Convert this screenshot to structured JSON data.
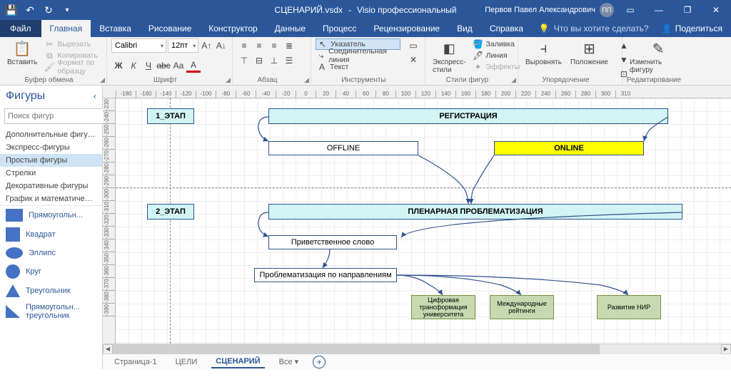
{
  "titlebar": {
    "filename": "СЦЕНАРИЙ.vsdx",
    "app": "Visio профессиональный",
    "user": "Первов Павел Александрович",
    "user_initials": "ПП"
  },
  "tabs": {
    "file": "Файл",
    "home": "Главная",
    "insert": "Вставка",
    "draw": "Рисование",
    "design": "Конструктор",
    "data": "Данные",
    "process": "Процесс",
    "review": "Рецензирование",
    "view": "Вид",
    "help": "Справка",
    "tellme": "Что вы хотите сделать?",
    "share": "Поделиться"
  },
  "ribbon": {
    "clipboard": {
      "label": "Буфер обмена",
      "paste": "Вставить",
      "cut": "Вырезать",
      "copy": "Копировать",
      "format": "Формат по образцу"
    },
    "font": {
      "label": "Шрифт",
      "name": "Calibri",
      "size": "12пт"
    },
    "paragraph": {
      "label": "Абзац"
    },
    "tools": {
      "label": "Инструменты",
      "pointer": "Указатель",
      "connector": "Соединительная линия",
      "text": "Текст"
    },
    "styles": {
      "label": "Стили фигур",
      "express": "Экспресс-стили",
      "fill": "Заливка",
      "line": "Линия",
      "effects": "Эффекты"
    },
    "arrange": {
      "label": "Упорядочение",
      "align": "Выровнять",
      "position": "Положение"
    },
    "edit": {
      "label": "Редактирование",
      "change": "Изменить фигуру"
    }
  },
  "shapes_panel": {
    "title": "Фигуры",
    "search_placeholder": "Поиск фигур",
    "categories": [
      "Дополнительные фигуры",
      "Экспресс-фигуры",
      "Простые фигуры",
      "Стрелки",
      "Декоративные фигуры",
      "График и математическ..."
    ],
    "active_index": 2,
    "shapes": [
      "Прямоугольн...",
      "Квадрат",
      "Эллипс",
      "Круг",
      "Треугольник",
      "Прямоугольн... треугольник"
    ]
  },
  "ruler_h": [
    "-180",
    "-160",
    "-140",
    "-120",
    "-100",
    "-80",
    "-60",
    "-40",
    "-20",
    "0",
    "20",
    "40",
    "60",
    "80",
    "100",
    "120",
    "140",
    "160",
    "180",
    "200",
    "220",
    "240",
    "260",
    "280",
    "300",
    "310"
  ],
  "ruler_v": [
    "-230",
    "-240",
    "-250",
    "-260",
    "-270",
    "-280",
    "-290",
    "-300",
    "-310",
    "-320",
    "-330",
    "-340",
    "-350",
    "-360",
    "-370",
    "-380",
    "-390"
  ],
  "diagram": {
    "stage1": "1_ЭТАП",
    "reg": "РЕГИСТРАЦИЯ",
    "offline": "OFFLINE",
    "online": "ONLINE",
    "stage2": "2_ЭТАП",
    "plenary": "ПЛЕНАРНАЯ ПРОБЛЕМАТИЗАЦИЯ",
    "welcome": "Приветственное слово",
    "problematization": "Проблематизация по направлениям",
    "digital": "Цифровая трансформация университета",
    "intl": "Международные рейтинги",
    "nir": "Развитие НИР",
    "colors": {
      "cyan": "#d2f4f4",
      "yellow": "#ffff00",
      "green": "#c6d9b0",
      "border": "#2f528f",
      "arrow": "#2f528f"
    }
  },
  "sheets": {
    "page1": "Страница-1",
    "goals": "ЦЕЛИ",
    "scenario": "СЦЕНАРИЙ",
    "all": "Все"
  }
}
